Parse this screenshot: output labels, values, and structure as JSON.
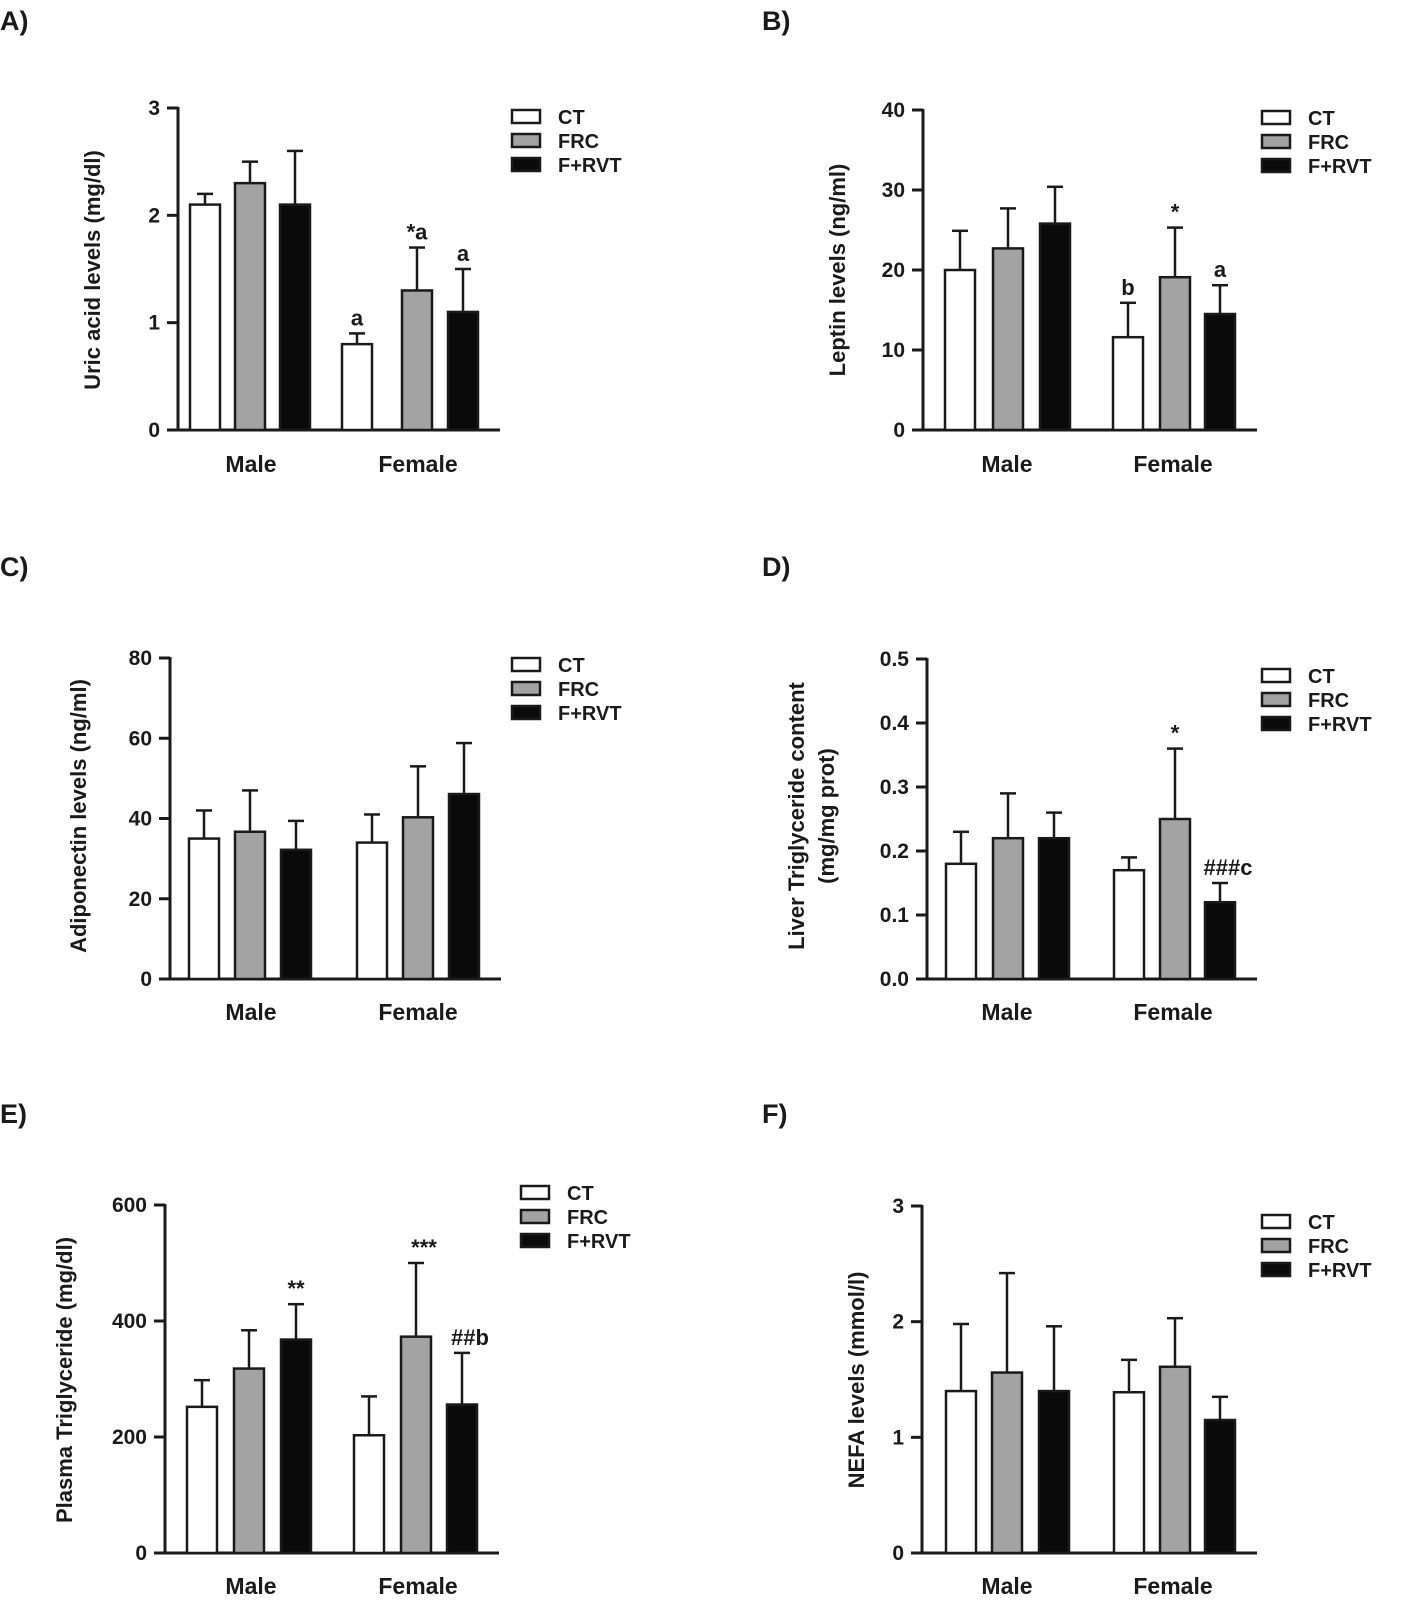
{
  "figure": {
    "legend_labels": [
      "CT",
      "FRC",
      "F+RVT"
    ],
    "series_colors": {
      "CT": "#ffffff",
      "FRC": "#a3a3a3",
      "F+RVT": "#0a0a0a"
    }
  },
  "chart_data": [
    {
      "panel": "A)",
      "type": "bar",
      "ylabel": [
        "Uric acid levels (mg/dl)"
      ],
      "categories": [
        "Male",
        "Female"
      ],
      "ylim": [
        0,
        3
      ],
      "yticks": [
        "0",
        "1",
        "2",
        "3"
      ],
      "ytick_values": [
        0,
        1,
        2,
        3
      ],
      "series": [
        {
          "name": "CT",
          "values": [
            2.1,
            0.8
          ],
          "errors": [
            0.1,
            0.1
          ],
          "annotations": [
            "",
            "a"
          ]
        },
        {
          "name": "FRC",
          "values": [
            2.3,
            1.3
          ],
          "errors": [
            0.2,
            0.4
          ],
          "annotations": [
            "",
            "*a"
          ]
        },
        {
          "name": "F+RVT",
          "values": [
            2.1,
            1.1
          ],
          "errors": [
            0.5,
            0.4
          ],
          "annotations": [
            "",
            "a"
          ]
        }
      ],
      "legend_position": "top-right"
    },
    {
      "panel": "B)",
      "type": "bar",
      "ylabel": [
        "Leptin levels (ng/ml)"
      ],
      "categories": [
        "Male",
        "Female"
      ],
      "ylim": [
        0,
        40
      ],
      "yticks": [
        "0",
        "10",
        "20",
        "30",
        "40"
      ],
      "ytick_values": [
        0,
        10,
        20,
        30,
        40
      ],
      "series": [
        {
          "name": "CT",
          "values": [
            20.0,
            11.6
          ],
          "errors": [
            4.9,
            4.3
          ],
          "annotations": [
            "",
            "b"
          ]
        },
        {
          "name": "FRC",
          "values": [
            22.7,
            19.1
          ],
          "errors": [
            5.0,
            6.2
          ],
          "annotations": [
            "",
            "*"
          ]
        },
        {
          "name": "F+RVT",
          "values": [
            25.8,
            14.5
          ],
          "errors": [
            4.6,
            3.6
          ],
          "annotations": [
            "",
            "a"
          ]
        }
      ],
      "legend_position": "top-right"
    },
    {
      "panel": "C)",
      "type": "bar",
      "ylabel": [
        "Adiponectin levels (ng/ml)"
      ],
      "categories": [
        "Male",
        "Female"
      ],
      "ylim": [
        0,
        80
      ],
      "yticks": [
        "0",
        "20",
        "40",
        "60",
        "80"
      ],
      "ytick_values": [
        0,
        20,
        40,
        60,
        80
      ],
      "series": [
        {
          "name": "CT",
          "values": [
            35.0,
            34.0
          ],
          "errors": [
            7.0,
            7.0
          ],
          "annotations": [
            "",
            ""
          ]
        },
        {
          "name": "FRC",
          "values": [
            36.7,
            40.3
          ],
          "errors": [
            10.3,
            12.7
          ],
          "annotations": [
            "",
            ""
          ]
        },
        {
          "name": "F+RVT",
          "values": [
            32.2,
            46.1
          ],
          "errors": [
            7.2,
            12.7
          ],
          "annotations": [
            "",
            ""
          ]
        }
      ],
      "legend_position": "top-right"
    },
    {
      "panel": "D)",
      "type": "bar",
      "ylabel": [
        "Liver Triglyceride content",
        "(mg/mg prot)"
      ],
      "categories": [
        "Male",
        "Female"
      ],
      "ylim": [
        0,
        0.5
      ],
      "yticks": [
        "0.0",
        "0.1",
        "0.2",
        "0.3",
        "0.4",
        "0.5"
      ],
      "ytick_values": [
        0,
        0.1,
        0.2,
        0.3,
        0.4,
        0.5
      ],
      "series": [
        {
          "name": "CT",
          "values": [
            0.18,
            0.17
          ],
          "errors": [
            0.05,
            0.02
          ],
          "annotations": [
            "",
            ""
          ]
        },
        {
          "name": "FRC",
          "values": [
            0.22,
            0.25
          ],
          "errors": [
            0.07,
            0.11
          ],
          "annotations": [
            "",
            "*"
          ]
        },
        {
          "name": "F+RVT",
          "values": [
            0.22,
            0.12
          ],
          "errors": [
            0.04,
            0.03
          ],
          "annotations": [
            "",
            "###c"
          ]
        }
      ],
      "legend_position": "top-right"
    },
    {
      "panel": "E)",
      "type": "bar",
      "ylabel": [
        "Plasma Triglyceride (mg/dl)"
      ],
      "categories": [
        "Male",
        "Female"
      ],
      "ylim": [
        0,
        600
      ],
      "yticks": [
        "0",
        "200",
        "400",
        "600"
      ],
      "ytick_values": [
        0,
        200,
        400,
        600
      ],
      "series": [
        {
          "name": "CT",
          "values": [
            252,
            203
          ],
          "errors": [
            46,
            67
          ],
          "annotations": [
            "",
            ""
          ]
        },
        {
          "name": "FRC",
          "values": [
            318,
            373
          ],
          "errors": [
            66,
            127
          ],
          "annotations": [
            "",
            "***"
          ]
        },
        {
          "name": "F+RVT",
          "values": [
            368,
            256
          ],
          "errors": [
            61,
            89
          ],
          "annotations": [
            "**",
            "##b"
          ]
        }
      ],
      "legend_position": "top-right"
    },
    {
      "panel": "F)",
      "type": "bar",
      "ylabel": [
        "NEFA levels (mmol/l)"
      ],
      "categories": [
        "Male",
        "Female"
      ],
      "ylim": [
        0,
        3
      ],
      "yticks": [
        "0",
        "1",
        "2",
        "3"
      ],
      "ytick_values": [
        0,
        1,
        2,
        3
      ],
      "series": [
        {
          "name": "CT",
          "values": [
            1.4,
            1.39
          ],
          "errors": [
            0.58,
            0.28
          ],
          "annotations": [
            "",
            ""
          ]
        },
        {
          "name": "FRC",
          "values": [
            1.56,
            1.61
          ],
          "errors": [
            0.86,
            0.42
          ],
          "annotations": [
            "",
            ""
          ]
        },
        {
          "name": "F+RVT",
          "values": [
            1.4,
            1.15
          ],
          "errors": [
            0.56,
            0.2
          ],
          "annotations": [
            "",
            ""
          ]
        }
      ],
      "legend_position": "top-right"
    }
  ]
}
